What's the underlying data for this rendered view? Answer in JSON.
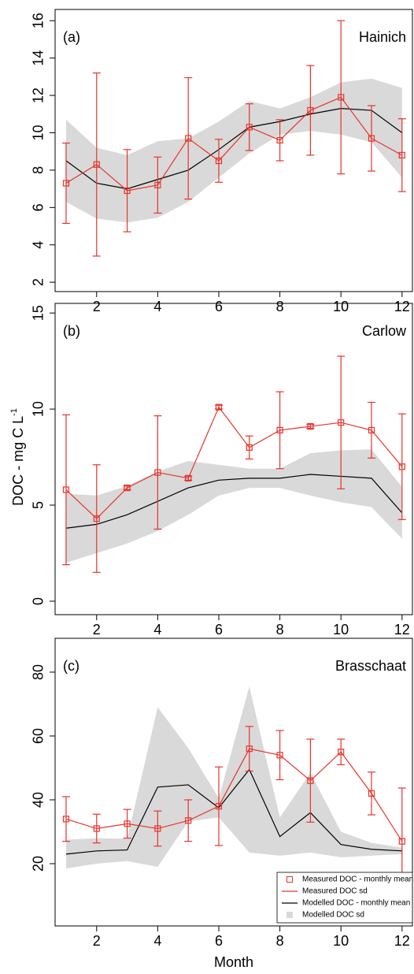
{
  "chart_data": [
    {
      "type": "line",
      "panel_label": "(a)",
      "title": "Hainich",
      "x": [
        1,
        2,
        3,
        4,
        5,
        6,
        7,
        8,
        9,
        10,
        11,
        12
      ],
      "xlim": [
        0.64,
        12.34
      ],
      "xticks": [
        2,
        4,
        6,
        8,
        10,
        12
      ],
      "ylim": [
        1.5,
        16.6
      ],
      "yticks": [
        2,
        4,
        6,
        8,
        10,
        12,
        14,
        16
      ],
      "series": [
        {
          "color": "#000000",
          "values": [
            8.5,
            7.3,
            7.0,
            7.5,
            8.0,
            9.1,
            10.3,
            10.6,
            11.0,
            11.3,
            11.2,
            10.0
          ],
          "band": [
            2.2,
            1.9,
            1.8,
            2.05,
            1.7,
            1.5,
            1.4,
            0.7,
            0.9,
            1.4,
            1.7,
            2.4
          ],
          "band_color": "#d9d9d9"
        },
        {
          "color": "#e8332a",
          "marker": "square",
          "values": [
            7.3,
            8.3,
            6.9,
            7.2,
            9.7,
            8.5,
            10.3,
            9.6,
            11.2,
            11.9,
            9.7,
            8.8
          ],
          "error": [
            2.15,
            4.9,
            2.2,
            1.5,
            3.25,
            1.15,
            1.25,
            1.1,
            2.4,
            4.1,
            1.75,
            1.95
          ]
        }
      ]
    },
    {
      "type": "line",
      "panel_label": "(b)",
      "title": "Carlow",
      "y_label": "DOC - mg C L",
      "y_label_superscript": "-1",
      "x": [
        1,
        2,
        3,
        4,
        5,
        6,
        7,
        8,
        9,
        10,
        11,
        12
      ],
      "xlim": [
        0.64,
        12.34
      ],
      "xticks": [
        2,
        4,
        6,
        8,
        10,
        12
      ],
      "ylim": [
        -0.7,
        15.5
      ],
      "yticks": [
        0,
        5,
        10,
        15
      ],
      "series": [
        {
          "color": "#000000",
          "values": [
            3.8,
            4.0,
            4.5,
            5.2,
            5.9,
            6.3,
            6.4,
            6.4,
            6.6,
            6.5,
            6.4,
            4.6
          ],
          "band": [
            1.8,
            1.5,
            1.5,
            1.55,
            1.4,
            0.8,
            0.5,
            0.5,
            1.1,
            1.35,
            1.5,
            1.35
          ],
          "band_color": "#d9d9d9"
        },
        {
          "color": "#e8332a",
          "marker": "square",
          "values": [
            5.8,
            4.3,
            5.9,
            6.7,
            6.4,
            10.1,
            8.0,
            8.9,
            9.1,
            9.3,
            8.9,
            7.0
          ],
          "error": [
            3.9,
            2.8,
            0.1,
            2.95,
            0.1,
            0.1,
            0.6,
            2.0,
            0.1,
            3.45,
            1.45,
            2.75
          ]
        }
      ]
    },
    {
      "type": "line",
      "panel_label": "(c)",
      "title": "Brasschaat",
      "x_label": "Month",
      "legend": "lower right",
      "x": [
        1,
        2,
        3,
        4,
        5,
        6,
        7,
        8,
        9,
        10,
        11,
        12
      ],
      "xlim": [
        0.64,
        12.34
      ],
      "xticks": [
        2,
        4,
        6,
        8,
        10,
        12
      ],
      "ylim": [
        0.5,
        90.6
      ],
      "yticks": [
        20,
        40,
        60,
        80
      ],
      "series": [
        {
          "name": "Modelled DOC - monthly mean",
          "color": "#000000",
          "values": [
            23,
            24,
            24.3,
            44,
            44.7,
            37.5,
            49.5,
            28.5,
            36,
            26,
            24.5,
            24
          ],
          "band": [
            4.5,
            4,
            3.5,
            25,
            11.5,
            3,
            26,
            6,
            12.5,
            4,
            2,
            1
          ],
          "band_color": "#d9d9d9",
          "band_name": "Modelled DOC sd"
        },
        {
          "name": "Measured DOC - monthly mean",
          "color": "#e8332a",
          "marker": "square",
          "values": [
            34,
            31,
            32.5,
            31,
            33.5,
            38,
            56,
            54,
            46,
            55,
            42,
            27
          ],
          "error": [
            7,
            4.5,
            4.5,
            5.5,
            6.5,
            12.3,
            7,
            7.7,
            13,
            4,
            6.7,
            16.7
          ],
          "error_name": "Measured DOC sd"
        }
      ]
    }
  ]
}
